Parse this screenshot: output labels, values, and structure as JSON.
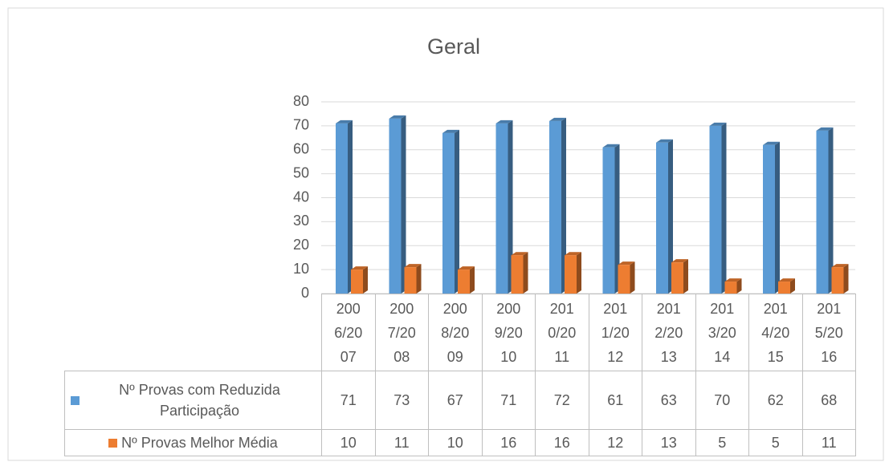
{
  "chart_data": {
    "type": "bar",
    "title": "Geral",
    "categories": [
      "2006/2007",
      "2007/2008",
      "2008/2009",
      "2009/2010",
      "2010/2011",
      "2011/2012",
      "2012/2013",
      "2013/2014",
      "2014/2015",
      "2015/2016"
    ],
    "series": [
      {
        "name": "Nº Provas com Reduzida Participação",
        "color": "#5b9bd5",
        "values": [
          71,
          73,
          67,
          71,
          72,
          61,
          63,
          70,
          62,
          68
        ]
      },
      {
        "name": "Nº Provas Melhor Média",
        "color": "#ed7d31",
        "values": [
          10,
          11,
          10,
          16,
          16,
          12,
          13,
          5,
          5,
          11
        ]
      }
    ],
    "ylim": [
      0,
      80
    ],
    "yticks": [
      0,
      10,
      20,
      30,
      40,
      50,
      60,
      70,
      80
    ],
    "grid": true
  }
}
